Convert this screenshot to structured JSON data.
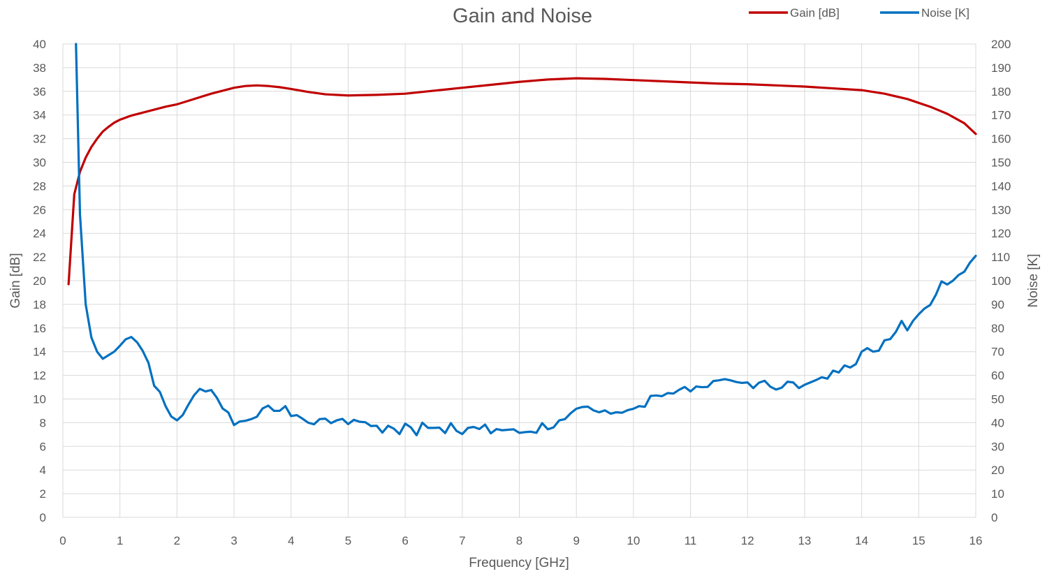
{
  "chart_data": {
    "type": "line",
    "title": "Gain and Noise",
    "xlabel": "Frequency [GHz]",
    "ylabel": "Gain [dB]",
    "y2label": "Noise [K]",
    "xlim": [
      0,
      16
    ],
    "ylim": [
      0,
      40
    ],
    "y2lim": [
      0,
      200
    ],
    "x_ticks": [
      0,
      1,
      2,
      3,
      4,
      5,
      6,
      7,
      8,
      9,
      10,
      11,
      12,
      13,
      14,
      15,
      16
    ],
    "y_ticks": [
      0,
      2,
      4,
      6,
      8,
      10,
      12,
      14,
      16,
      18,
      20,
      22,
      24,
      26,
      28,
      30,
      32,
      34,
      36,
      38,
      40
    ],
    "y2_ticks": [
      0,
      10,
      20,
      30,
      40,
      50,
      60,
      70,
      80,
      90,
      100,
      110,
      120,
      130,
      140,
      150,
      160,
      170,
      180,
      190,
      200
    ],
    "grid": true,
    "legend_position": "top-right",
    "series": [
      {
        "name": "Gain [dB]",
        "axis": "left",
        "color": "#c00000",
        "points": [
          [
            0.1,
            19.7
          ],
          [
            0.2,
            27.3
          ],
          [
            0.3,
            29.2
          ],
          [
            0.4,
            30.4
          ],
          [
            0.5,
            31.3
          ],
          [
            0.6,
            32.0
          ],
          [
            0.7,
            32.6
          ],
          [
            0.8,
            33.0
          ],
          [
            0.9,
            33.35
          ],
          [
            1.0,
            33.6
          ],
          [
            1.2,
            33.95
          ],
          [
            1.4,
            34.2
          ],
          [
            1.6,
            34.45
          ],
          [
            1.8,
            34.7
          ],
          [
            2.0,
            34.9
          ],
          [
            2.2,
            35.2
          ],
          [
            2.4,
            35.5
          ],
          [
            2.6,
            35.8
          ],
          [
            2.8,
            36.05
          ],
          [
            3.0,
            36.3
          ],
          [
            3.2,
            36.45
          ],
          [
            3.4,
            36.5
          ],
          [
            3.6,
            36.45
          ],
          [
            3.8,
            36.35
          ],
          [
            4.0,
            36.2
          ],
          [
            4.3,
            35.95
          ],
          [
            4.6,
            35.75
          ],
          [
            5.0,
            35.65
          ],
          [
            5.5,
            35.7
          ],
          [
            6.0,
            35.8
          ],
          [
            6.5,
            36.05
          ],
          [
            7.0,
            36.3
          ],
          [
            7.5,
            36.55
          ],
          [
            8.0,
            36.8
          ],
          [
            8.5,
            37.0
          ],
          [
            9.0,
            37.1
          ],
          [
            9.5,
            37.05
          ],
          [
            10.0,
            36.95
          ],
          [
            10.5,
            36.85
          ],
          [
            11.0,
            36.75
          ],
          [
            11.5,
            36.65
          ],
          [
            12.0,
            36.6
          ],
          [
            12.5,
            36.5
          ],
          [
            13.0,
            36.4
          ],
          [
            13.5,
            36.25
          ],
          [
            14.0,
            36.1
          ],
          [
            14.4,
            35.8
          ],
          [
            14.8,
            35.35
          ],
          [
            15.2,
            34.7
          ],
          [
            15.5,
            34.1
          ],
          [
            15.8,
            33.3
          ],
          [
            16.0,
            32.4
          ]
        ]
      },
      {
        "name": "Noise [K]",
        "axis": "right",
        "color": "#0070c0",
        "points": [
          [
            0.23,
            200
          ],
          [
            0.3,
            128
          ],
          [
            0.4,
            90
          ],
          [
            0.5,
            76
          ],
          [
            0.6,
            70
          ],
          [
            0.7,
            67
          ],
          [
            0.8,
            68.5
          ],
          [
            0.9,
            70
          ],
          [
            1.0,
            72.5
          ],
          [
            1.1,
            75.2
          ],
          [
            1.2,
            76.2
          ],
          [
            1.3,
            74
          ],
          [
            1.4,
            70.3
          ],
          [
            1.5,
            65.3
          ],
          [
            1.6,
            55.6
          ],
          [
            1.7,
            53
          ],
          [
            1.8,
            47
          ],
          [
            1.9,
            42.6
          ],
          [
            2.0,
            41
          ],
          [
            2.1,
            43.2
          ],
          [
            2.2,
            47.6
          ],
          [
            2.3,
            51.6
          ],
          [
            2.4,
            54.3
          ],
          [
            2.5,
            53.2
          ],
          [
            2.6,
            53.8
          ],
          [
            2.7,
            50.5
          ],
          [
            2.8,
            46
          ],
          [
            2.9,
            44.3
          ],
          [
            3.0,
            39
          ],
          [
            3.1,
            40.5
          ],
          [
            3.2,
            40.8
          ],
          [
            3.3,
            41.5
          ],
          [
            3.4,
            42.5
          ],
          [
            3.5,
            46
          ],
          [
            3.6,
            47.2
          ],
          [
            3.7,
            45
          ],
          [
            3.8,
            45
          ],
          [
            3.9,
            47
          ],
          [
            4.0,
            42.8
          ],
          [
            4.1,
            43.2
          ],
          [
            4.2,
            41.7
          ],
          [
            4.3,
            40
          ],
          [
            4.4,
            39.3
          ],
          [
            4.5,
            41.5
          ],
          [
            4.6,
            41.7
          ],
          [
            4.7,
            39.8
          ],
          [
            4.8,
            41
          ],
          [
            4.9,
            41.6
          ],
          [
            5.0,
            39.4
          ],
          [
            5.1,
            41.2
          ],
          [
            5.2,
            40.4
          ],
          [
            5.3,
            40.2
          ],
          [
            5.4,
            38.6
          ],
          [
            5.5,
            38.7
          ],
          [
            5.6,
            35.8
          ],
          [
            5.7,
            38.7
          ],
          [
            5.8,
            37.5
          ],
          [
            5.9,
            35.2
          ],
          [
            6.0,
            39.6
          ],
          [
            6.1,
            38
          ],
          [
            6.2,
            34.7
          ],
          [
            6.3,
            40
          ],
          [
            6.4,
            37.8
          ],
          [
            6.5,
            37.8
          ],
          [
            6.6,
            37.9
          ],
          [
            6.7,
            35.6
          ],
          [
            6.8,
            39.8
          ],
          [
            6.9,
            36.5
          ],
          [
            7.0,
            35.2
          ],
          [
            7.1,
            37.8
          ],
          [
            7.2,
            38.2
          ],
          [
            7.3,
            37.3
          ],
          [
            7.4,
            39.2
          ],
          [
            7.5,
            35.5
          ],
          [
            7.6,
            37.3
          ],
          [
            7.7,
            36.8
          ],
          [
            7.8,
            37
          ],
          [
            7.9,
            37.2
          ],
          [
            8.0,
            35.7
          ],
          [
            8.1,
            36
          ],
          [
            8.2,
            36.2
          ],
          [
            8.3,
            35.7
          ],
          [
            8.4,
            39.8
          ],
          [
            8.5,
            37.2
          ],
          [
            8.6,
            38
          ],
          [
            8.7,
            41
          ],
          [
            8.8,
            41.5
          ],
          [
            8.9,
            44
          ],
          [
            9.0,
            45.9
          ],
          [
            9.1,
            46.6
          ],
          [
            9.2,
            46.8
          ],
          [
            9.3,
            45.2
          ],
          [
            9.4,
            44.4
          ],
          [
            9.5,
            45.2
          ],
          [
            9.6,
            43.8
          ],
          [
            9.7,
            44.4
          ],
          [
            9.8,
            44.2
          ],
          [
            9.9,
            45.3
          ],
          [
            10.0,
            45.9
          ],
          [
            10.1,
            47
          ],
          [
            10.2,
            46.7
          ],
          [
            10.3,
            51.3
          ],
          [
            10.4,
            51.5
          ],
          [
            10.5,
            51.2
          ],
          [
            10.6,
            52.5
          ],
          [
            10.7,
            52.3
          ],
          [
            10.8,
            53.9
          ],
          [
            10.9,
            55.1
          ],
          [
            11.0,
            53.2
          ],
          [
            11.1,
            55.3
          ],
          [
            11.2,
            55
          ],
          [
            11.3,
            55.1
          ],
          [
            11.4,
            57.6
          ],
          [
            11.5,
            57.9
          ],
          [
            11.6,
            58.4
          ],
          [
            11.7,
            57.9
          ],
          [
            11.8,
            57.2
          ],
          [
            11.9,
            56.8
          ],
          [
            12.0,
            57
          ],
          [
            12.1,
            54.6
          ],
          [
            12.2,
            56.9
          ],
          [
            12.3,
            57.7
          ],
          [
            12.4,
            55.2
          ],
          [
            12.5,
            54
          ],
          [
            12.6,
            54.8
          ],
          [
            12.7,
            57.3
          ],
          [
            12.8,
            57
          ],
          [
            12.9,
            54.6
          ],
          [
            13.0,
            56
          ],
          [
            13.1,
            57
          ],
          [
            13.2,
            58
          ],
          [
            13.3,
            59.2
          ],
          [
            13.4,
            58.6
          ],
          [
            13.5,
            62
          ],
          [
            13.6,
            61.2
          ],
          [
            13.7,
            64.2
          ],
          [
            13.8,
            63.3
          ],
          [
            13.9,
            64.8
          ],
          [
            14.0,
            70
          ],
          [
            14.1,
            71.5
          ],
          [
            14.2,
            70
          ],
          [
            14.3,
            70.4
          ],
          [
            14.4,
            74.8
          ],
          [
            14.5,
            75.3
          ],
          [
            14.6,
            78.4
          ],
          [
            14.7,
            83
          ],
          [
            14.8,
            79
          ],
          [
            14.9,
            83
          ],
          [
            15.0,
            85.8
          ],
          [
            15.1,
            88.2
          ],
          [
            15.2,
            89.7
          ],
          [
            15.3,
            94
          ],
          [
            15.4,
            99.7
          ],
          [
            15.5,
            98.4
          ],
          [
            15.6,
            100
          ],
          [
            15.7,
            102.4
          ],
          [
            15.8,
            103.8
          ],
          [
            15.9,
            107.7
          ],
          [
            16.0,
            110.5
          ]
        ]
      }
    ]
  }
}
